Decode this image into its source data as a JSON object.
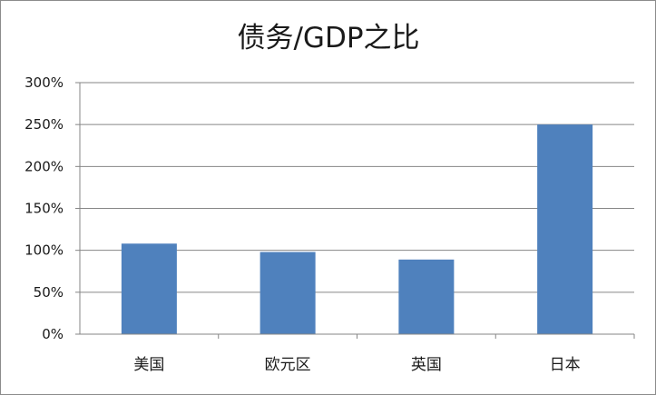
{
  "chart_data": {
    "type": "bar",
    "title": "债务/GDP之比",
    "categories": [
      "美国",
      "欧元区",
      "英国",
      "日本"
    ],
    "values": [
      1.08,
      0.98,
      0.89,
      2.5
    ],
    "ylim": [
      0,
      3
    ],
    "yticks": [
      0,
      0.5,
      1.0,
      1.5,
      2.0,
      2.5,
      3.0
    ],
    "ytick_labels": [
      "0%",
      "50%",
      "100%",
      "150%",
      "200%",
      "250%",
      "300%"
    ],
    "grid": true,
    "legend": "none",
    "bar_color": "#4f81bd",
    "grid_color": "#868686"
  }
}
